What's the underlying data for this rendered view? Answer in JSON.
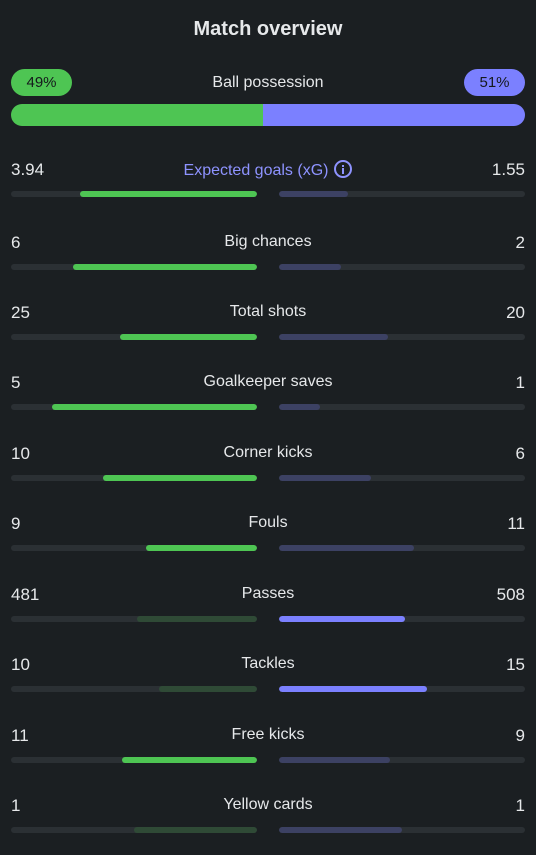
{
  "title": "Match overview",
  "possession": {
    "label": "Ball possession",
    "home": "49%",
    "away": "51%",
    "home_fraction": 0.49
  },
  "colors": {
    "home": "#4ec553",
    "away": "#7b80ff",
    "background": "#1b1f22",
    "xg_label": "#8e93ff"
  },
  "stats": [
    {
      "label": "Expected goals (xG)",
      "home": "3.94",
      "away": "1.55",
      "home_value": 3.94,
      "away_value": 1.55,
      "info": true,
      "home_fill": 0.72,
      "away_fill": 0.28
    },
    {
      "label": "Big chances",
      "home": "6",
      "away": "2",
      "home_value": 6,
      "away_value": 2,
      "home_fill": 0.75,
      "away_fill": 0.25
    },
    {
      "label": "Total shots",
      "home": "25",
      "away": "20",
      "home_value": 25,
      "away_value": 20,
      "home_fill": 0.556,
      "away_fill": 0.444
    },
    {
      "label": "Goalkeeper saves",
      "home": "5",
      "away": "1",
      "home_value": 5,
      "away_value": 1,
      "home_fill": 0.833,
      "away_fill": 0.167
    },
    {
      "label": "Corner kicks",
      "home": "10",
      "away": "6",
      "home_value": 10,
      "away_value": 6,
      "home_fill": 0.625,
      "away_fill": 0.375
    },
    {
      "label": "Fouls",
      "home": "9",
      "away": "11",
      "home_value": 9,
      "away_value": 11,
      "home_fill": 0.45,
      "away_fill": 0.55
    },
    {
      "label": "Passes",
      "home": "481",
      "away": "508",
      "home_value": 481,
      "away_value": 508,
      "home_fill": 0.486,
      "away_fill": 0.514
    },
    {
      "label": "Tackles",
      "home": "10",
      "away": "15",
      "home_value": 10,
      "away_value": 15,
      "home_fill": 0.4,
      "away_fill": 0.6
    },
    {
      "label": "Free kicks",
      "home": "11",
      "away": "9",
      "home_value": 11,
      "away_value": 9,
      "home_fill": 0.55,
      "away_fill": 0.45
    },
    {
      "label": "Yellow cards",
      "home": "1",
      "away": "1",
      "home_value": 1,
      "away_value": 1,
      "home_fill": 0.5,
      "away_fill": 0.5
    }
  ]
}
